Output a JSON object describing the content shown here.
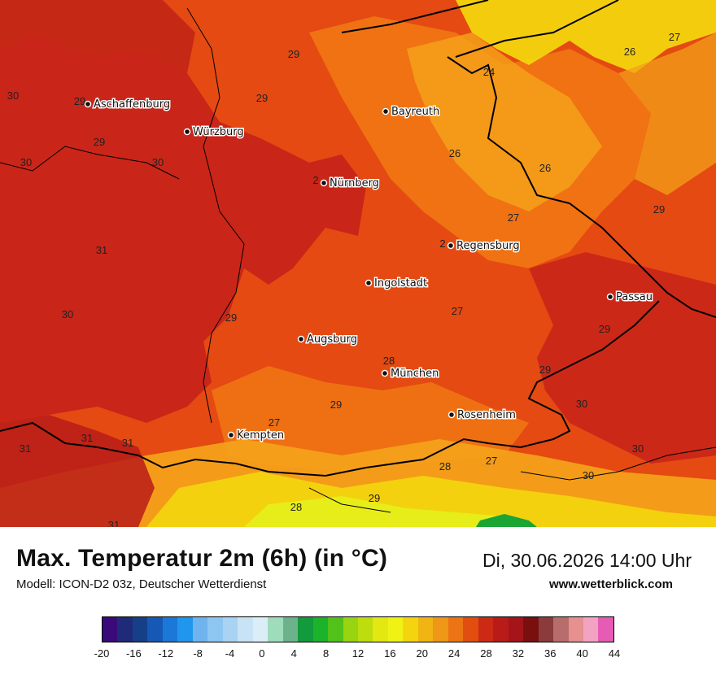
{
  "map": {
    "colors": {
      "base": "#e44a12",
      "hot": "#c8221a",
      "warm": "#f17714",
      "orange": "#f4a01a",
      "yellow": "#f3d40e",
      "lightyellow": "#e6ee1a",
      "green": "#1aa535",
      "border": "#000000"
    },
    "cities": [
      {
        "id": "aschaffenburg",
        "name": "Aschaffenburg"
      },
      {
        "id": "wuerzburg",
        "name": "Würzburg"
      },
      {
        "id": "bayreuth",
        "name": "Bayreuth"
      },
      {
        "id": "nuernberg",
        "name": "Nürnberg"
      },
      {
        "id": "regensburg",
        "name": "Regensburg"
      },
      {
        "id": "ingolstadt",
        "name": "Ingolstadt"
      },
      {
        "id": "passau",
        "name": "Passau"
      },
      {
        "id": "augsburg",
        "name": "Augsburg"
      },
      {
        "id": "muenchen",
        "name": "München"
      },
      {
        "id": "rosenheim",
        "name": "Rosenheim"
      },
      {
        "id": "kempten",
        "name": "Kempten"
      }
    ],
    "values": [
      "30",
      "29",
      "29",
      "29",
      "30",
      "30",
      "31",
      "30",
      "29",
      "29",
      "2",
      "2",
      "26",
      "24",
      "26",
      "27",
      "26",
      "27",
      "29",
      "27",
      "29",
      "28",
      "29",
      "29",
      "30",
      "27",
      "31",
      "31",
      "31",
      "31",
      "28",
      "29",
      "28",
      "27",
      "30",
      "30"
    ]
  },
  "footer": {
    "title": "Max. Temperatur 2m (6h) (in °C)",
    "datetime": "Di, 30.06.2026 14:00 Uhr",
    "model": "Modell: ICON-D2 03z, Deutscher Wetterdienst",
    "website": "www.wetterblick.com"
  },
  "legend": {
    "colors": [
      "#3a0a7a",
      "#1f2a78",
      "#163f8a",
      "#1559b4",
      "#1b78d8",
      "#2196ee",
      "#6fb4ee",
      "#8ec6f2",
      "#a9d3f3",
      "#c9e3f6",
      "#dbeef8",
      "#9fdcbc",
      "#6cb38c",
      "#139a3d",
      "#1bb22c",
      "#52c11a",
      "#98d40f",
      "#bedd0f",
      "#e3e813",
      "#f0f214",
      "#f3d40e",
      "#f0b512",
      "#ef9716",
      "#ec7414",
      "#e24d10",
      "#cd2a15",
      "#b81b18",
      "#a51418",
      "#7a0f0f",
      "#8c3b3b",
      "#b86d6d",
      "#e69090",
      "#f2a3c2",
      "#e65bb4"
    ],
    "ticks": [
      "-20",
      "-16",
      "-12",
      "-8",
      "-4",
      "0",
      "4",
      "8",
      "12",
      "16",
      "20",
      "24",
      "28",
      "32",
      "36",
      "40",
      "44"
    ]
  }
}
